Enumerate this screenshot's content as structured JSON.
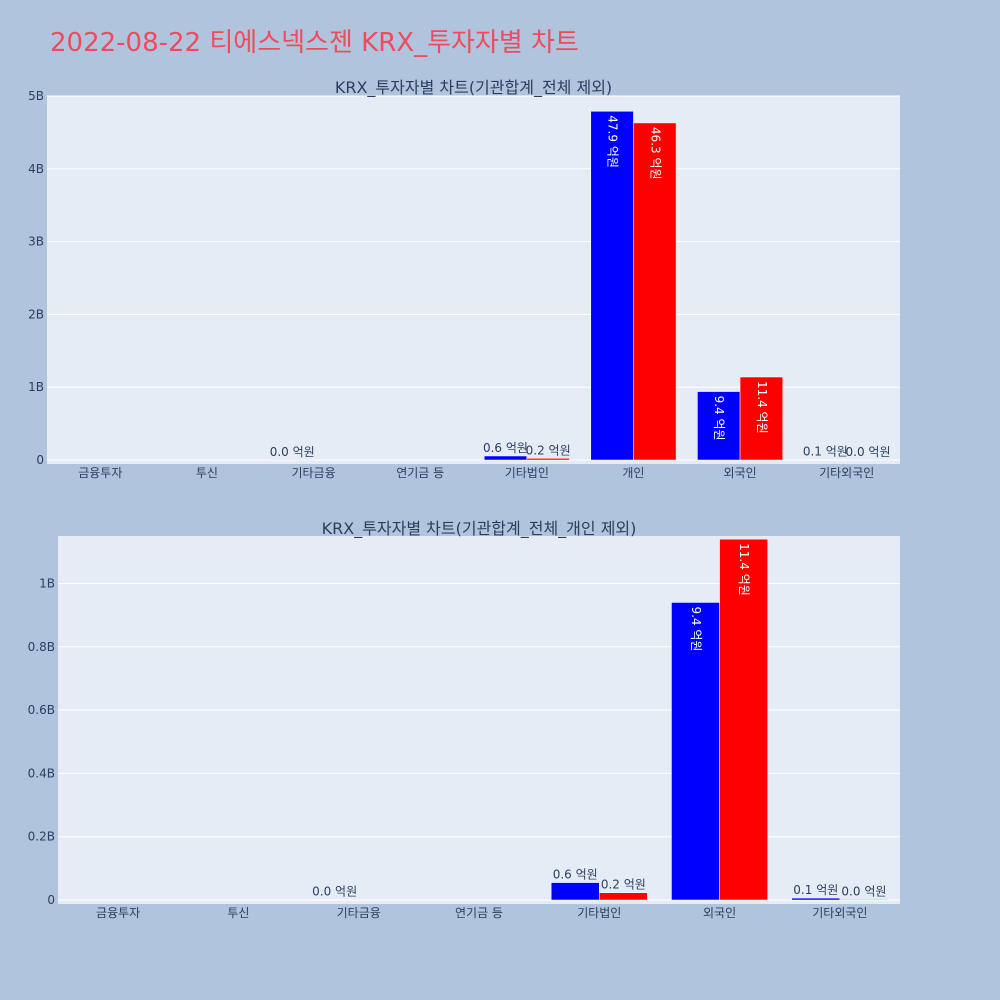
{
  "page": {
    "title": "2022-08-22 티에스넥스젠 KRX_투자자별 차트"
  },
  "colors": {
    "background": "#b0c4de",
    "plot_background": "#e5ecf6",
    "title": "#ef4b5d",
    "series_1": "#0000ff",
    "series_2": "#ff0000",
    "text": "#2a3f5f"
  },
  "chart_data": [
    {
      "type": "bar",
      "title": "KRX_투자자별 차트(기관합계_전체 제외)",
      "categories": [
        "금융투자",
        "투신",
        "기타금융",
        "연기금 등",
        "기타법인",
        "개인",
        "외국인",
        "기타외국인"
      ],
      "series": [
        {
          "color": "#0000ff",
          "values": [
            0,
            0,
            1300000,
            0,
            55000000,
            4790000000,
            940000000,
            6000000
          ],
          "labels": [
            "",
            "",
            "0.0 억원",
            "",
            "0.6 억원",
            "47.9 억원",
            "9.4 억원",
            "0.1 억원"
          ]
        },
        {
          "color": "#ff0000",
          "values": [
            0,
            0,
            0,
            0,
            23000000,
            4630000000,
            1140000000,
            2000000
          ],
          "labels": [
            "",
            "",
            "",
            "",
            "0.2 억원",
            "46.3 억원",
            "11.4 억원",
            "0.0 억원"
          ]
        }
      ],
      "ylim": [
        0,
        5000000000
      ],
      "yticks": [
        0,
        1000000000,
        2000000000,
        3000000000,
        4000000000,
        5000000000
      ],
      "ytick_labels": [
        "0",
        "1B",
        "2B",
        "3B",
        "4B",
        "5B"
      ],
      "grid": true,
      "legend": "none"
    },
    {
      "type": "bar",
      "title": "KRX_투자자별 차트(기관합계_전체_개인 제외)",
      "categories": [
        "금융투자",
        "투신",
        "기타금융",
        "연기금 등",
        "기타법인",
        "외국인",
        "기타외국인"
      ],
      "series": [
        {
          "color": "#0000ff",
          "values": [
            0,
            0,
            1300000,
            0,
            55000000,
            940000000,
            6000000
          ],
          "labels": [
            "",
            "",
            "0.0 억원",
            "",
            "0.6 억원",
            "9.4 억원",
            "0.1 억원"
          ]
        },
        {
          "color": "#ff0000",
          "values": [
            0,
            0,
            0,
            0,
            23000000,
            1140000000,
            2000000
          ],
          "labels": [
            "",
            "",
            "",
            "",
            "0.2 억원",
            "11.4 억원",
            "0.0 억원"
          ]
        }
      ],
      "ylim": [
        0,
        1150000000
      ],
      "yticks": [
        0,
        200000000,
        400000000,
        600000000,
        800000000,
        1000000000
      ],
      "ytick_labels": [
        "0",
        "0.2B",
        "0.4B",
        "0.6B",
        "0.8B",
        "1B"
      ],
      "grid": true,
      "legend": "none"
    }
  ]
}
